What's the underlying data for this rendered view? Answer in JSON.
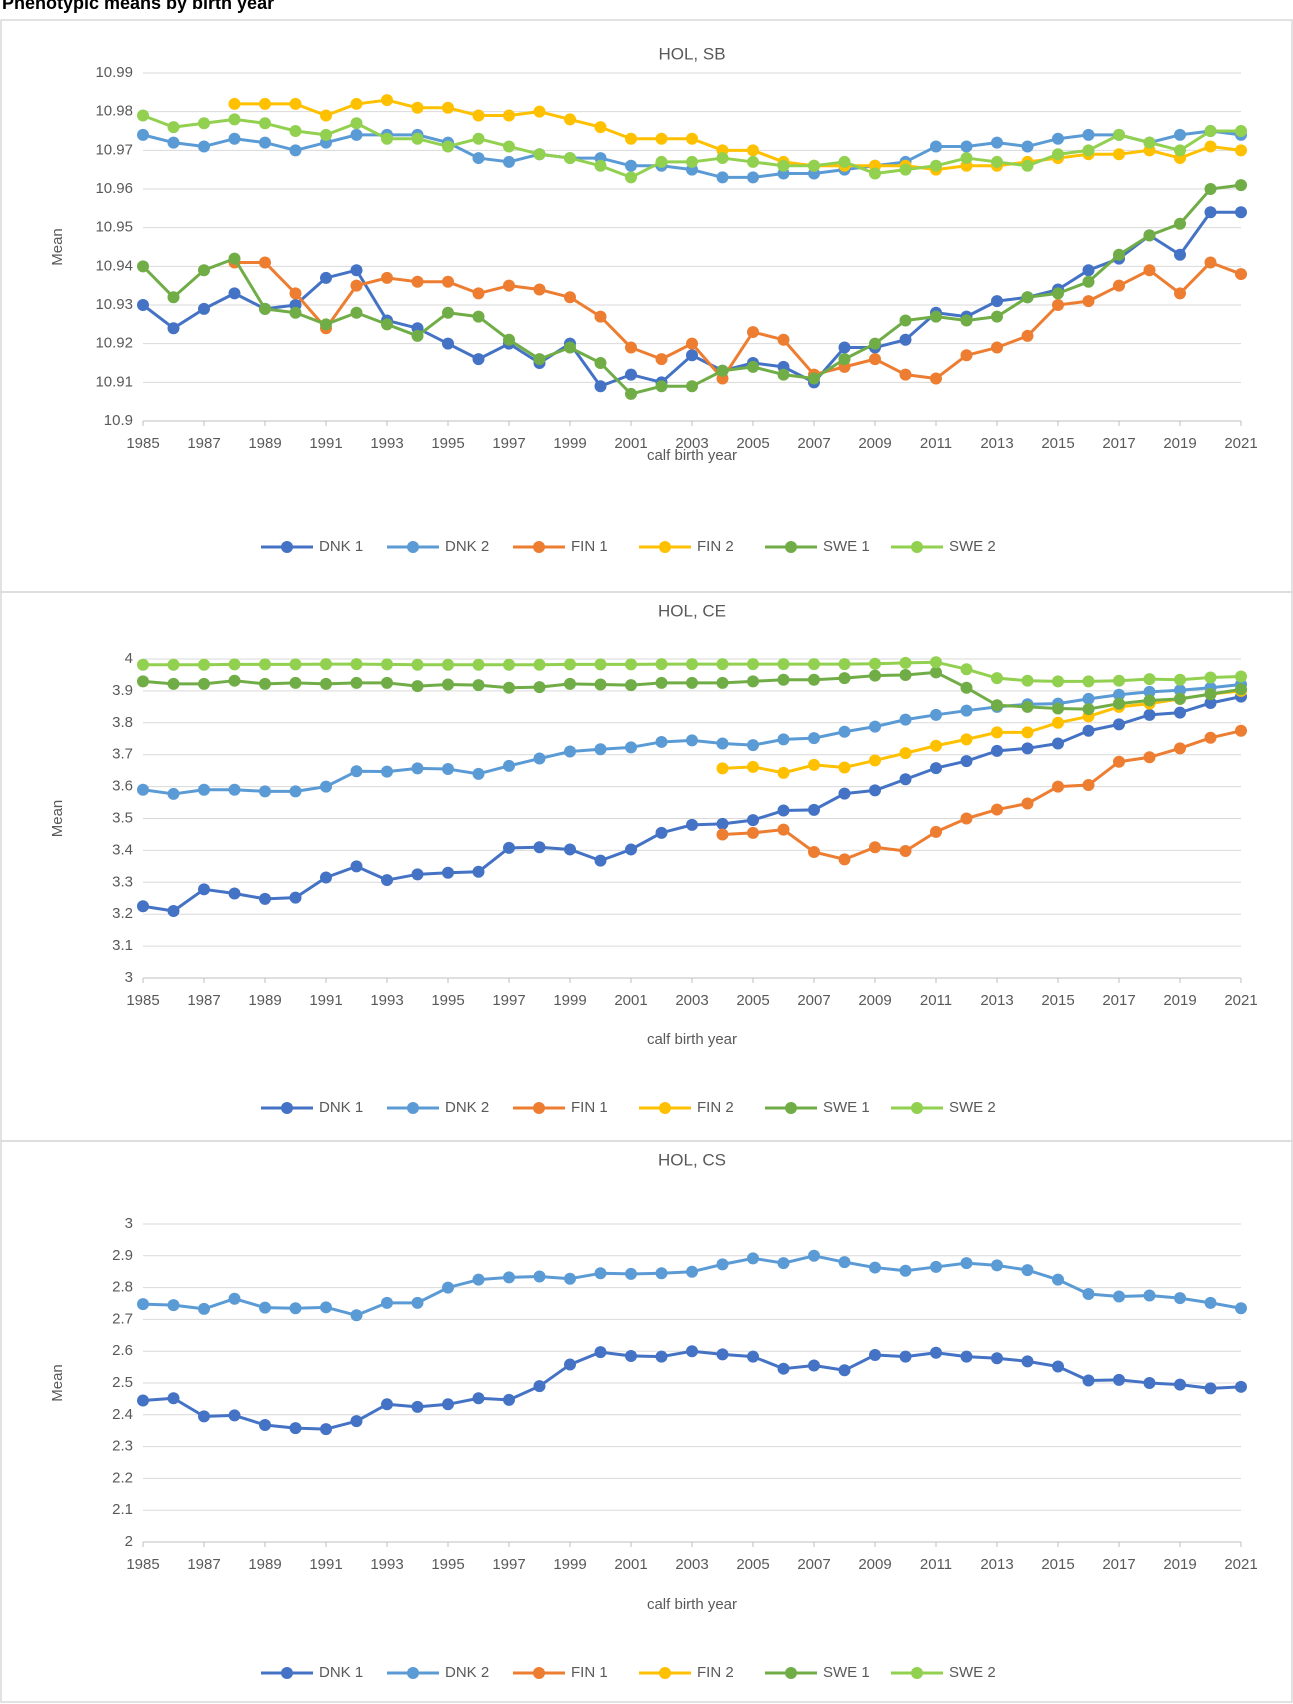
{
  "page_title": "Phenotypic means by birth year",
  "chart_data": [
    {
      "type": "line",
      "title": "HOL, SB",
      "x_label": "calf birth year",
      "y_label": "Mean",
      "x": [
        1985,
        1986,
        1987,
        1988,
        1989,
        1990,
        1991,
        1992,
        1993,
        1994,
        1995,
        1996,
        1997,
        1998,
        1999,
        2000,
        2001,
        2002,
        2003,
        2004,
        2005,
        2006,
        2007,
        2008,
        2009,
        2010,
        2011,
        2012,
        2013,
        2014,
        2015,
        2016,
        2017,
        2018,
        2019,
        2020,
        2021
      ],
      "xlim": [
        1985,
        2021
      ],
      "xticks": [
        1985,
        1987,
        1989,
        1991,
        1993,
        1995,
        1997,
        1999,
        2001,
        2003,
        2005,
        2007,
        2009,
        2011,
        2013,
        2015,
        2017,
        2019,
        2021
      ],
      "ylim": [
        10.9,
        10.99
      ],
      "yticks": [
        10.9,
        10.91,
        10.92,
        10.93,
        10.94,
        10.95,
        10.96,
        10.97,
        10.98,
        10.99
      ],
      "grid": true,
      "legend": "bottom",
      "series": [
        {
          "name": "DNK 1",
          "color": "#4472c4",
          "values": [
            10.93,
            10.924,
            10.929,
            10.933,
            10.929,
            10.93,
            10.937,
            10.939,
            10.926,
            10.924,
            10.92,
            10.916,
            10.92,
            10.915,
            10.92,
            10.909,
            10.912,
            10.91,
            10.917,
            10.913,
            10.915,
            10.914,
            10.91,
            10.919,
            10.919,
            10.921,
            10.928,
            10.927,
            10.931,
            10.932,
            10.934,
            10.939,
            10.942,
            10.948,
            10.943,
            10.954,
            10.954
          ]
        },
        {
          "name": "DNK 2",
          "color": "#5b9bd5",
          "values": [
            10.974,
            10.972,
            10.971,
            10.973,
            10.972,
            10.97,
            10.972,
            10.974,
            10.974,
            10.974,
            10.972,
            10.968,
            10.967,
            10.969,
            10.968,
            10.968,
            10.966,
            10.966,
            10.965,
            10.963,
            10.963,
            10.964,
            10.964,
            10.965,
            10.966,
            10.967,
            10.971,
            10.971,
            10.972,
            10.971,
            10.973,
            10.974,
            10.974,
            10.972,
            10.974,
            10.975,
            10.974
          ]
        },
        {
          "name": "FIN 1",
          "color": "#ed7d31",
          "values": [
            null,
            null,
            null,
            10.941,
            10.941,
            10.933,
            10.924,
            10.935,
            10.937,
            10.936,
            10.936,
            10.933,
            10.935,
            10.934,
            10.932,
            10.927,
            10.919,
            10.916,
            10.92,
            10.911,
            10.923,
            10.921,
            10.912,
            10.914,
            10.916,
            10.912,
            10.911,
            10.917,
            10.919,
            10.922,
            10.93,
            10.931,
            10.935,
            10.939,
            10.933,
            10.941,
            10.938
          ]
        },
        {
          "name": "FIN 2",
          "color": "#ffc000",
          "values": [
            null,
            null,
            null,
            10.982,
            10.982,
            10.982,
            10.979,
            10.982,
            10.983,
            10.981,
            10.981,
            10.979,
            10.979,
            10.98,
            10.978,
            10.976,
            10.973,
            10.973,
            10.973,
            10.97,
            10.97,
            10.967,
            10.966,
            10.966,
            10.966,
            10.966,
            10.965,
            10.966,
            10.966,
            10.967,
            10.968,
            10.969,
            10.969,
            10.97,
            10.968,
            10.971,
            10.97
          ]
        },
        {
          "name": "SWE 1",
          "color": "#70ad47",
          "values": [
            10.94,
            10.932,
            10.939,
            10.942,
            10.929,
            10.928,
            10.925,
            10.928,
            10.925,
            10.922,
            10.928,
            10.927,
            10.921,
            10.916,
            10.919,
            10.915,
            10.907,
            10.909,
            10.909,
            10.913,
            10.914,
            10.912,
            10.911,
            10.916,
            10.92,
            10.926,
            10.927,
            10.926,
            10.927,
            10.932,
            10.933,
            10.936,
            10.943,
            10.948,
            10.951,
            10.96,
            10.961
          ]
        },
        {
          "name": "SWE 2",
          "color": "#92d050",
          "values": [
            10.979,
            10.976,
            10.977,
            10.978,
            10.977,
            10.975,
            10.974,
            10.977,
            10.973,
            10.973,
            10.971,
            10.973,
            10.971,
            10.969,
            10.968,
            10.966,
            10.963,
            10.967,
            10.967,
            10.968,
            10.967,
            10.966,
            10.966,
            10.967,
            10.964,
            10.965,
            10.966,
            10.968,
            10.967,
            10.966,
            10.969,
            10.97,
            10.974,
            10.972,
            10.97,
            10.975,
            10.975
          ]
        }
      ]
    },
    {
      "type": "line",
      "title": "HOL, CE",
      "x_label": "calf birth year",
      "y_label": "Mean",
      "x": [
        1985,
        1986,
        1987,
        1988,
        1989,
        1990,
        1991,
        1992,
        1993,
        1994,
        1995,
        1996,
        1997,
        1998,
        1999,
        2000,
        2001,
        2002,
        2003,
        2004,
        2005,
        2006,
        2007,
        2008,
        2009,
        2010,
        2011,
        2012,
        2013,
        2014,
        2015,
        2016,
        2017,
        2018,
        2019,
        2020,
        2021
      ],
      "xlim": [
        1985,
        2021
      ],
      "xticks": [
        1985,
        1987,
        1989,
        1991,
        1993,
        1995,
        1997,
        1999,
        2001,
        2003,
        2005,
        2007,
        2009,
        2011,
        2013,
        2015,
        2017,
        2019,
        2021
      ],
      "ylim": [
        3,
        4
      ],
      "yticks": [
        3,
        3.1,
        3.2,
        3.3,
        3.4,
        3.5,
        3.6,
        3.7,
        3.8,
        3.9,
        4
      ],
      "grid": true,
      "legend": "bottom",
      "series": [
        {
          "name": "DNK 1",
          "color": "#4472c4",
          "values": [
            3.225,
            3.21,
            3.278,
            3.265,
            3.248,
            3.252,
            3.315,
            3.35,
            3.307,
            3.325,
            3.33,
            3.333,
            3.408,
            3.41,
            3.403,
            3.368,
            3.403,
            3.455,
            3.48,
            3.483,
            3.495,
            3.525,
            3.527,
            3.578,
            3.588,
            3.623,
            3.658,
            3.68,
            3.712,
            3.72,
            3.735,
            3.775,
            3.795,
            3.825,
            3.832,
            3.862,
            3.882
          ]
        },
        {
          "name": "DNK 2",
          "color": "#5b9bd5",
          "values": [
            3.59,
            3.577,
            3.59,
            3.59,
            3.585,
            3.585,
            3.6,
            3.648,
            3.647,
            3.657,
            3.655,
            3.64,
            3.665,
            3.688,
            3.71,
            3.717,
            3.723,
            3.74,
            3.745,
            3.735,
            3.73,
            3.748,
            3.752,
            3.772,
            3.788,
            3.81,
            3.825,
            3.838,
            3.85,
            3.858,
            3.86,
            3.875,
            3.888,
            3.897,
            3.902,
            3.91,
            3.92
          ]
        },
        {
          "name": "FIN 1",
          "color": "#ed7d31",
          "values": [
            null,
            null,
            null,
            null,
            null,
            null,
            null,
            null,
            null,
            null,
            null,
            null,
            null,
            null,
            null,
            null,
            null,
            null,
            null,
            3.45,
            3.455,
            3.465,
            3.395,
            3.372,
            3.41,
            3.398,
            3.458,
            3.5,
            3.528,
            3.547,
            3.6,
            3.605,
            3.678,
            3.692,
            3.72,
            3.753,
            3.775
          ]
        },
        {
          "name": "FIN 2",
          "color": "#ffc000",
          "values": [
            null,
            null,
            null,
            null,
            null,
            null,
            null,
            null,
            null,
            null,
            null,
            null,
            null,
            null,
            null,
            null,
            null,
            null,
            null,
            3.657,
            3.662,
            3.643,
            3.668,
            3.66,
            3.682,
            3.705,
            3.728,
            3.748,
            3.77,
            3.77,
            3.8,
            3.82,
            3.85,
            3.86,
            3.875,
            3.89,
            3.9
          ]
        },
        {
          "name": "SWE 1",
          "color": "#70ad47",
          "values": [
            3.93,
            3.922,
            3.922,
            3.932,
            3.922,
            3.925,
            3.922,
            3.925,
            3.925,
            3.915,
            3.92,
            3.918,
            3.91,
            3.912,
            3.922,
            3.92,
            3.918,
            3.925,
            3.925,
            3.925,
            3.93,
            3.935,
            3.935,
            3.94,
            3.948,
            3.95,
            3.958,
            3.91,
            3.855,
            3.85,
            3.845,
            3.843,
            3.86,
            3.87,
            3.875,
            3.89,
            3.905
          ]
        },
        {
          "name": "SWE 2",
          "color": "#92d050",
          "values": [
            3.982,
            3.982,
            3.982,
            3.983,
            3.983,
            3.983,
            3.984,
            3.984,
            3.983,
            3.982,
            3.982,
            3.982,
            3.982,
            3.982,
            3.983,
            3.983,
            3.983,
            3.984,
            3.984,
            3.984,
            3.984,
            3.984,
            3.984,
            3.984,
            3.985,
            3.988,
            3.99,
            3.968,
            3.94,
            3.932,
            3.93,
            3.93,
            3.932,
            3.937,
            3.935,
            3.942,
            3.945
          ]
        }
      ]
    },
    {
      "type": "line",
      "title": "HOL, CS",
      "x_label": "calf birth year",
      "y_label": "Mean",
      "x": [
        1985,
        1986,
        1987,
        1988,
        1989,
        1990,
        1991,
        1992,
        1993,
        1994,
        1995,
        1996,
        1997,
        1998,
        1999,
        2000,
        2001,
        2002,
        2003,
        2004,
        2005,
        2006,
        2007,
        2008,
        2009,
        2010,
        2011,
        2012,
        2013,
        2014,
        2015,
        2016,
        2017,
        2018,
        2019,
        2020,
        2021
      ],
      "xlim": [
        1985,
        2021
      ],
      "xticks": [
        1985,
        1987,
        1989,
        1991,
        1993,
        1995,
        1997,
        1999,
        2001,
        2003,
        2005,
        2007,
        2009,
        2011,
        2013,
        2015,
        2017,
        2019,
        2021
      ],
      "ylim": [
        2,
        3
      ],
      "yticks": [
        2,
        2.1,
        2.2,
        2.3,
        2.4,
        2.5,
        2.6,
        2.7,
        2.8,
        2.9,
        3
      ],
      "grid": true,
      "legend": "bottom",
      "series": [
        {
          "name": "DNK 1",
          "color": "#4472c4",
          "values": [
            2.445,
            2.452,
            2.395,
            2.398,
            2.368,
            2.358,
            2.355,
            2.38,
            2.433,
            2.425,
            2.433,
            2.452,
            2.447,
            2.49,
            2.558,
            2.597,
            2.585,
            2.583,
            2.6,
            2.59,
            2.583,
            2.545,
            2.555,
            2.54,
            2.588,
            2.583,
            2.595,
            2.583,
            2.578,
            2.568,
            2.552,
            2.508,
            2.51,
            2.5,
            2.495,
            2.483,
            2.488
          ]
        },
        {
          "name": "DNK 2",
          "color": "#5b9bd5",
          "values": [
            2.748,
            2.745,
            2.733,
            2.765,
            2.737,
            2.735,
            2.738,
            2.713,
            2.752,
            2.752,
            2.8,
            2.825,
            2.832,
            2.835,
            2.828,
            2.845,
            2.843,
            2.845,
            2.85,
            2.873,
            2.892,
            2.877,
            2.9,
            2.88,
            2.863,
            2.853,
            2.865,
            2.877,
            2.87,
            2.855,
            2.825,
            2.78,
            2.772,
            2.775,
            2.767,
            2.752,
            2.735
          ]
        },
        {
          "name": "FIN 1",
          "color": "#ed7d31",
          "values": [
            null,
            null,
            null,
            null,
            null,
            null,
            null,
            null,
            null,
            null,
            null,
            null,
            null,
            null,
            null,
            null,
            null,
            null,
            null,
            null,
            null,
            null,
            null,
            null,
            null,
            null,
            null,
            null,
            null,
            null,
            null,
            null,
            null,
            null,
            null,
            null,
            null
          ]
        },
        {
          "name": "FIN 2",
          "color": "#ffc000",
          "values": [
            null,
            null,
            null,
            null,
            null,
            null,
            null,
            null,
            null,
            null,
            null,
            null,
            null,
            null,
            null,
            null,
            null,
            null,
            null,
            null,
            null,
            null,
            null,
            null,
            null,
            null,
            null,
            null,
            null,
            null,
            null,
            null,
            null,
            null,
            null,
            null,
            null
          ]
        },
        {
          "name": "SWE 1",
          "color": "#70ad47",
          "values": [
            null,
            null,
            null,
            null,
            null,
            null,
            null,
            null,
            null,
            null,
            null,
            null,
            null,
            null,
            null,
            null,
            null,
            null,
            null,
            null,
            null,
            null,
            null,
            null,
            null,
            null,
            null,
            null,
            null,
            null,
            null,
            null,
            null,
            null,
            null,
            null,
            null
          ]
        },
        {
          "name": "SWE 2",
          "color": "#92d050",
          "values": [
            null,
            null,
            null,
            null,
            null,
            null,
            null,
            null,
            null,
            null,
            null,
            null,
            null,
            null,
            null,
            null,
            null,
            null,
            null,
            null,
            null,
            null,
            null,
            null,
            null,
            null,
            null,
            null,
            null,
            null,
            null,
            null,
            null,
            null,
            null,
            null,
            null
          ]
        }
      ]
    }
  ]
}
